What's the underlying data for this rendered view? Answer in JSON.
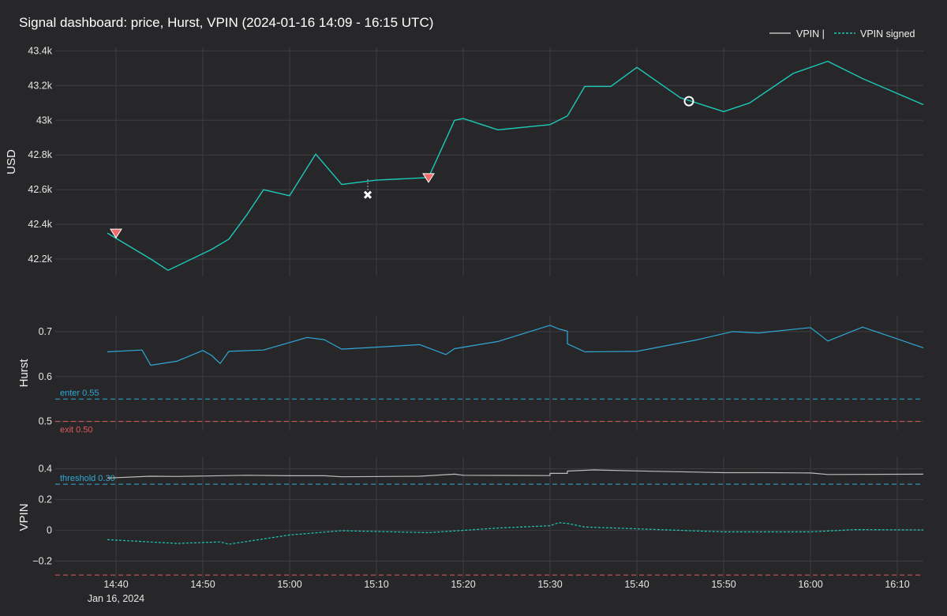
{
  "title": "Signal dashboard: price, Hurst, VPIN (2024-01-16 14:09 - 16:15 UTC)",
  "colors": {
    "price": "#1cc9b8",
    "hurst": "#2fa8d6",
    "vpin_abs": "#bdbdbd",
    "vpin_signed": "#1cc9b8",
    "enter": "#2fa8d6",
    "exit": "#e05b5b",
    "marker_sell": "#f26b6b"
  },
  "legend": [
    "VPIN |",
    "VPIN signed"
  ],
  "chart_data": [
    {
      "type": "line",
      "name": "price",
      "ylabel": "USD",
      "ylim": [
        42100,
        43420
      ],
      "yticks": [
        42200,
        42400,
        42600,
        42800,
        43000,
        43200,
        43400
      ],
      "ytick_labels": [
        "42.2k",
        "42.4k",
        "42.6k",
        "42.8k",
        "43k",
        "43.2k",
        "43.4k"
      ],
      "series": [
        {
          "x": [
            "14:39",
            "14:44",
            "14:46",
            "14:51",
            "14:53",
            "14:55",
            "14:57",
            "15:00",
            "15:03",
            "15:06",
            "15:10",
            "15:16",
            "15:19",
            "15:20",
            "15:24",
            "15:30",
            "15:32",
            "15:34",
            "15:37",
            "15:40",
            "15:45",
            "15:50",
            "15:53",
            "15:58",
            "16:02",
            "16:06",
            "16:13"
          ],
          "y": [
            42350,
            42200,
            42135,
            42255,
            42315,
            42450,
            42600,
            42565,
            42805,
            42630,
            42655,
            42670,
            43000,
            43010,
            42945,
            42975,
            43025,
            43195,
            43195,
            43305,
            43130,
            43050,
            43100,
            43270,
            43340,
            43240,
            43090
          ]
        }
      ],
      "markers": [
        {
          "symbol": "triangle-down",
          "x": "14:40",
          "y": 42345
        },
        {
          "symbol": "x",
          "x": "15:09",
          "y": 42570
        },
        {
          "symbol": "triangle-down",
          "x": "15:16",
          "y": 42665
        },
        {
          "symbol": "circle-open",
          "x": "15:46",
          "y": 43110
        }
      ]
    },
    {
      "type": "line",
      "name": "hurst",
      "ylabel": "Hurst",
      "ylim": [
        0.48,
        0.735
      ],
      "yticks": [
        0.5,
        0.6,
        0.7
      ],
      "ytick_labels": [
        "0.5",
        "0.6",
        "0.7"
      ],
      "series": [
        {
          "x": [
            "14:39",
            "14:43",
            "14:44",
            "14:47",
            "14:50",
            "14:51",
            "14:52",
            "14:53",
            "14:57",
            "15:02",
            "15:04",
            "15:06",
            "15:15",
            "15:18",
            "15:19",
            "15:24",
            "15:30",
            "15:31",
            "15:32",
            "15:32",
            "15:34",
            "15:40",
            "15:47",
            "15:51",
            "15:54",
            "16:00",
            "16:02",
            "16:06",
            "16:13"
          ],
          "y": [
            0.655,
            0.659,
            0.625,
            0.634,
            0.658,
            0.647,
            0.629,
            0.656,
            0.659,
            0.687,
            0.682,
            0.661,
            0.671,
            0.649,
            0.662,
            0.678,
            0.714,
            0.706,
            0.701,
            0.673,
            0.655,
            0.656,
            0.682,
            0.7,
            0.697,
            0.709,
            0.679,
            0.71,
            0.664
          ]
        }
      ],
      "hlines": [
        {
          "y": 0.55,
          "label": "enter 0.55"
        },
        {
          "y": 0.5,
          "label": "exit 0.50"
        }
      ]
    },
    {
      "type": "line",
      "name": "vpin",
      "ylabel": "VPIN",
      "ylim": [
        -0.31,
        0.48
      ],
      "yticks": [
        -0.2,
        0,
        0.2,
        0.4
      ],
      "ytick_labels": [
        "−0.2",
        "0",
        "0.2",
        "0.4"
      ],
      "series": [
        {
          "name": "VPIN |",
          "x": [
            "14:39",
            "14:44",
            "14:47",
            "14:55",
            "15:00",
            "15:04",
            "15:06",
            "15:15",
            "15:19",
            "15:20",
            "15:30",
            "15:30",
            "15:32",
            "15:32",
            "15:35",
            "15:40",
            "15:50",
            "15:55",
            "16:00",
            "16:02",
            "16:13"
          ],
          "y": [
            0.34,
            0.352,
            0.35,
            0.358,
            0.355,
            0.355,
            0.348,
            0.352,
            0.365,
            0.358,
            0.356,
            0.37,
            0.37,
            0.385,
            0.393,
            0.386,
            0.375,
            0.375,
            0.373,
            0.363,
            0.365
          ]
        },
        {
          "name": "VPIN signed",
          "x": [
            "14:39",
            "14:47",
            "14:52",
            "14:53",
            "15:00",
            "15:06",
            "15:16",
            "15:24",
            "15:30",
            "15:31",
            "15:32",
            "15:34",
            "15:40",
            "15:50",
            "16:00",
            "16:05",
            "16:13"
          ],
          "y": [
            -0.06,
            -0.085,
            -0.075,
            -0.09,
            -0.03,
            -0.002,
            -0.015,
            0.015,
            0.03,
            0.05,
            0.045,
            0.022,
            0.01,
            -0.01,
            -0.01,
            0.005,
            0.003
          ]
        }
      ],
      "hlines": [
        {
          "y": 0.3,
          "label": "threshold 0.30"
        },
        {
          "y": -0.29,
          "label": ""
        }
      ]
    }
  ],
  "xaxis": {
    "range": [
      "14:33",
      "16:13"
    ],
    "ticks": [
      "14:40",
      "14:50",
      "15:00",
      "15:10",
      "15:20",
      "15:30",
      "15:40",
      "15:50",
      "16:00",
      "16:10"
    ],
    "date_label": "Jan 16, 2024"
  }
}
